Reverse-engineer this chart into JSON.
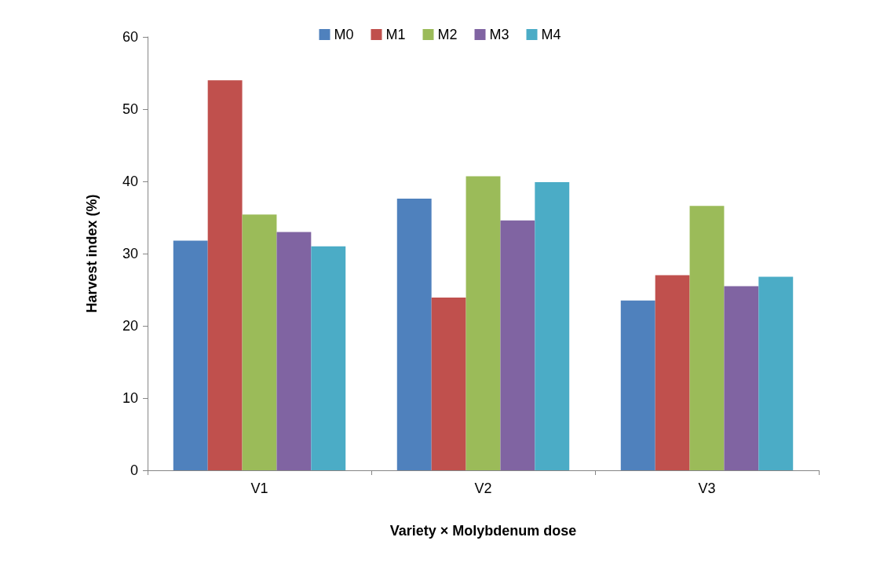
{
  "chart_data": {
    "type": "bar",
    "xlabel": "Variety × Molybdenum dose",
    "ylabel": "Harvest index (%)",
    "categories": [
      "V1",
      "V2",
      "V3"
    ],
    "series": [
      {
        "name": "M0",
        "color": "#4f81bd",
        "values": [
          31.8,
          37.6,
          23.5
        ]
      },
      {
        "name": "M1",
        "color": "#c0504d",
        "values": [
          54.0,
          23.9,
          27.0
        ]
      },
      {
        "name": "M2",
        "color": "#9bbb59",
        "values": [
          35.4,
          40.7,
          36.6
        ]
      },
      {
        "name": "M3",
        "color": "#8064a2",
        "values": [
          33.0,
          34.6,
          25.5
        ]
      },
      {
        "name": "M4",
        "color": "#4bacc6",
        "values": [
          31.0,
          39.9,
          26.8
        ]
      }
    ],
    "ylim": [
      0,
      60
    ],
    "yticks": [
      0,
      10,
      20,
      30,
      40,
      50,
      60
    ],
    "grid": false,
    "legend": "top"
  }
}
